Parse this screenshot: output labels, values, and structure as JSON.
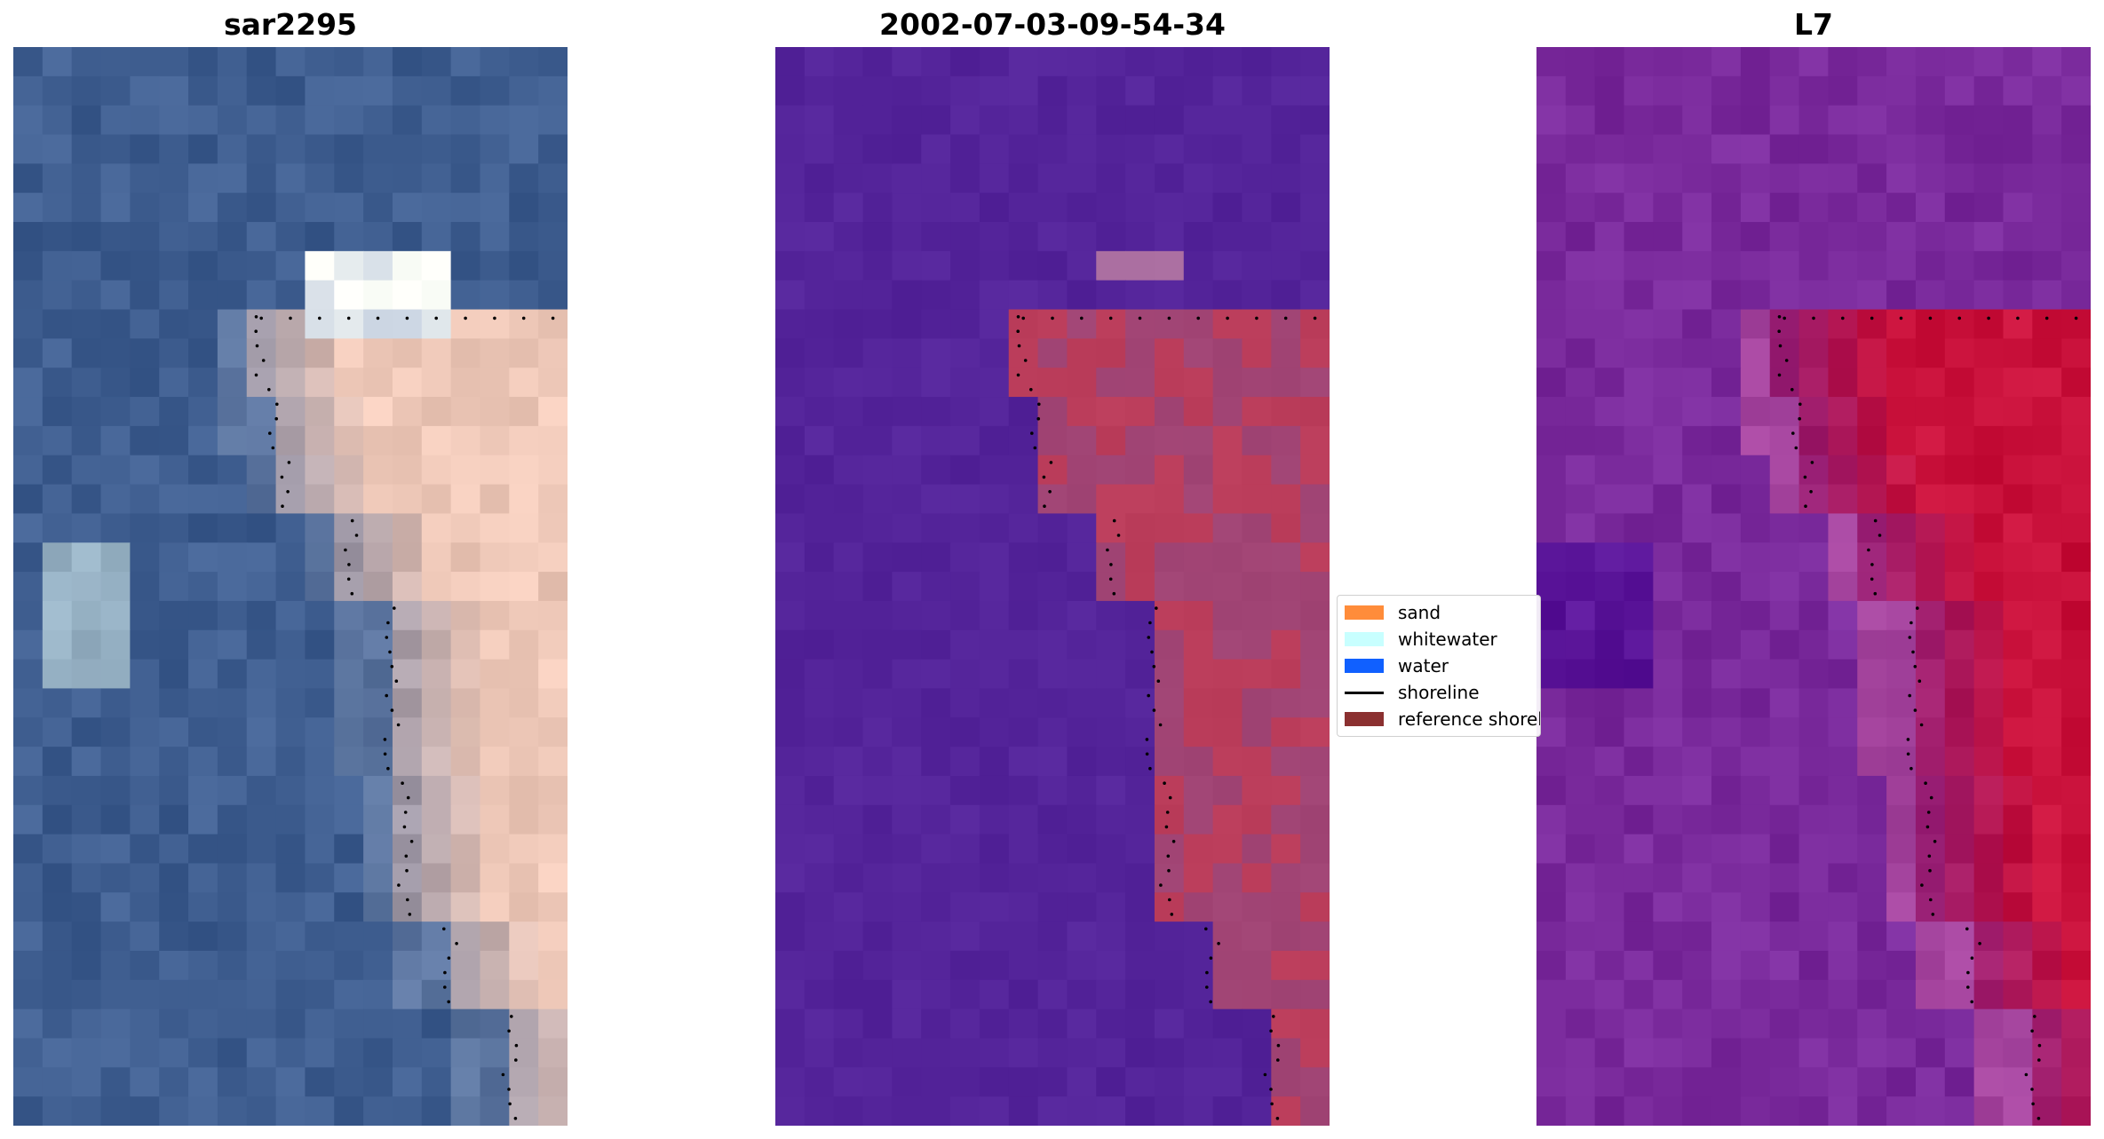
{
  "panels": [
    {
      "title": "sar2295"
    },
    {
      "title": "2002-07-03-09-54-34"
    },
    {
      "title": "L7"
    }
  ],
  "legend": {
    "items": [
      {
        "label": "sand",
        "color": "#ff8c3a",
        "kind": "patch"
      },
      {
        "label": "whitewater",
        "color": "#c8ffff",
        "kind": "patch"
      },
      {
        "label": "water",
        "color": "#1060ff",
        "kind": "patch"
      },
      {
        "label": "shoreline",
        "color": "#000000",
        "kind": "line"
      },
      {
        "label": "reference shoreline buffer",
        "color": "#8b3030",
        "kind": "patch"
      }
    ]
  },
  "colors": {
    "sea_blue": "#3f5e90",
    "sand_peach": "#eec8b8",
    "classified_water": "#54249a",
    "classified_land": "#b83a58",
    "index_purple": "#7a2a9c",
    "index_red": "#c8103a"
  }
}
